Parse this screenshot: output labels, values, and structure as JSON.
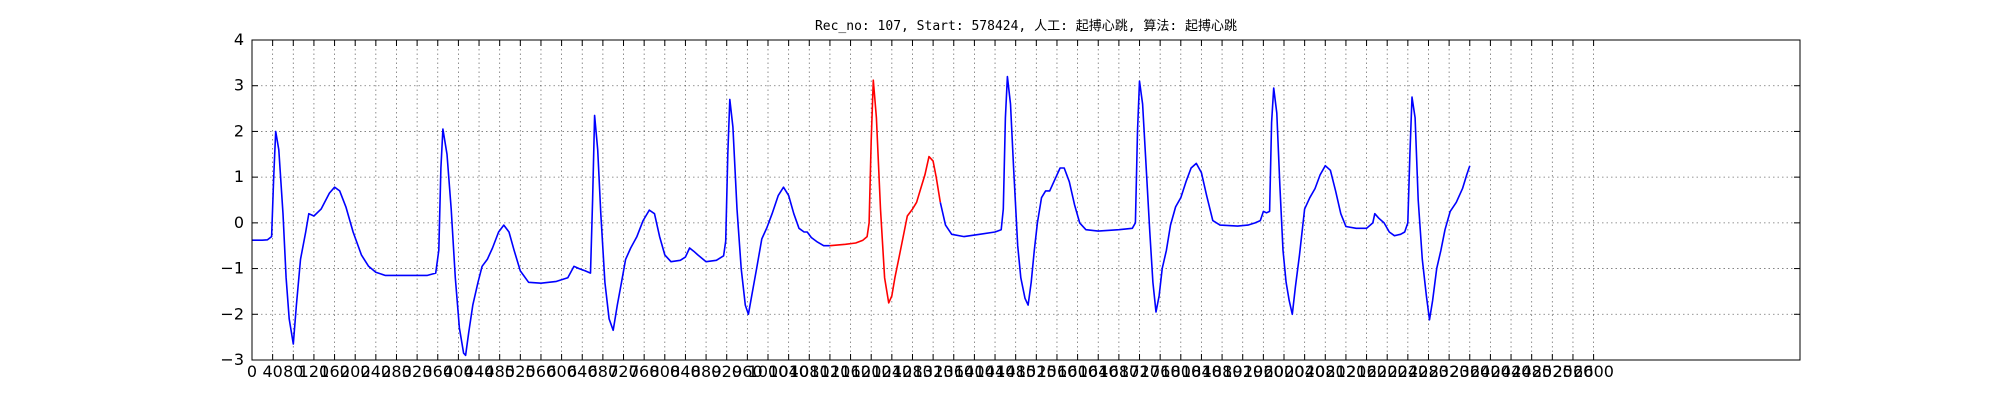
{
  "chart_data": {
    "type": "line",
    "title": "Rec_no: 107, Start: 578424, 人工: 起搏心跳, 算法: 起搏心跳",
    "xlabel": "",
    "ylabel": "",
    "xlim": [
      0,
      3000
    ],
    "ylim": [
      -3,
      4
    ],
    "x_ticks": [
      0,
      40,
      80,
      120,
      160,
      200,
      240,
      280,
      320,
      360,
      400,
      440,
      480,
      520,
      560,
      600,
      640,
      680,
      720,
      760,
      800,
      840,
      880,
      920,
      960,
      1000,
      1040,
      1080,
      1120,
      1160,
      1200,
      1240,
      1280,
      1320,
      1360,
      1400,
      1440,
      1480,
      1520,
      1560,
      1600,
      1640,
      1680,
      1720,
      1760,
      1800,
      1840,
      1880,
      1920,
      1960,
      2000,
      2040,
      2080,
      2120,
      2160,
      2200,
      2240,
      2280,
      2320,
      2360,
      2400,
      2440,
      2480,
      2520,
      2560,
      2600
    ],
    "x_tick_labels": [
      "0",
      "40",
      "80",
      "120",
      "160",
      "200",
      "240",
      "280",
      "320",
      "360",
      "400",
      "440",
      "480",
      "520",
      "560",
      "600",
      "640",
      "680",
      "720",
      "760",
      "800",
      "840",
      "880",
      "920",
      "960",
      "1000",
      "1040",
      "1080",
      "1120",
      "1160",
      "1200",
      "1240",
      "1280",
      "1320",
      "1360",
      "1400",
      "1440",
      "1480",
      "1520",
      "1560",
      "1600",
      "1640",
      "1680",
      "1720",
      "1760",
      "1800",
      "1840",
      "1880",
      "1920",
      "1960",
      "2000",
      "2040",
      "2080",
      "2120",
      "2160",
      "2200",
      "2240",
      "2280",
      "2320",
      "2360",
      "2400",
      "2440",
      "2480",
      "2520",
      "2560",
      "2600"
    ],
    "y_ticks": [
      -3,
      -2,
      -1,
      0,
      1,
      2,
      3,
      4
    ],
    "y_tick_labels": [
      "−3",
      "−2",
      "−1",
      "0",
      "1",
      "2",
      "3",
      "4"
    ],
    "grid": true,
    "series": [
      {
        "color": "#0000ff",
        "points": [
          [
            0,
            -0.38
          ],
          [
            20,
            -0.38
          ],
          [
            30,
            -0.37
          ],
          [
            38,
            -0.3
          ],
          [
            42,
            1.0
          ],
          [
            46,
            2.0
          ],
          [
            52,
            1.6
          ],
          [
            60,
            0.2
          ],
          [
            66,
            -1.2
          ],
          [
            72,
            -2.1
          ],
          [
            80,
            -2.65
          ],
          [
            86,
            -1.8
          ],
          [
            94,
            -0.8
          ],
          [
            104,
            -0.2
          ],
          [
            110,
            0.2
          ],
          [
            120,
            0.15
          ],
          [
            134,
            0.3
          ],
          [
            150,
            0.65
          ],
          [
            160,
            0.78
          ],
          [
            170,
            0.7
          ],
          [
            182,
            0.35
          ],
          [
            196,
            -0.2
          ],
          [
            212,
            -0.7
          ],
          [
            226,
            -0.95
          ],
          [
            240,
            -1.08
          ],
          [
            258,
            -1.15
          ],
          [
            300,
            -1.15
          ],
          [
            340,
            -1.15
          ],
          [
            356,
            -1.1
          ],
          [
            362,
            -0.6
          ],
          [
            366,
            1.2
          ],
          [
            370,
            2.05
          ],
          [
            378,
            1.5
          ],
          [
            386,
            0.3
          ],
          [
            394,
            -1.2
          ],
          [
            402,
            -2.3
          ],
          [
            410,
            -2.85
          ],
          [
            414,
            -2.9
          ],
          [
            420,
            -2.4
          ],
          [
            428,
            -1.8
          ],
          [
            438,
            -1.3
          ],
          [
            446,
            -0.95
          ],
          [
            456,
            -0.8
          ],
          [
            466,
            -0.55
          ],
          [
            478,
            -0.2
          ],
          [
            488,
            -0.05
          ],
          [
            498,
            -0.2
          ],
          [
            508,
            -0.6
          ],
          [
            520,
            -1.05
          ],
          [
            536,
            -1.3
          ],
          [
            560,
            -1.32
          ],
          [
            590,
            -1.28
          ],
          [
            612,
            -1.2
          ],
          [
            624,
            -0.95
          ],
          [
            634,
            -1.0
          ],
          [
            646,
            -1.05
          ],
          [
            656,
            -1.1
          ],
          [
            660,
            0.5
          ],
          [
            664,
            2.35
          ],
          [
            670,
            1.6
          ],
          [
            676,
            0.2
          ],
          [
            684,
            -1.3
          ],
          [
            692,
            -2.1
          ],
          [
            700,
            -2.35
          ],
          [
            708,
            -1.8
          ],
          [
            716,
            -1.3
          ],
          [
            724,
            -0.8
          ],
          [
            734,
            -0.55
          ],
          [
            746,
            -0.3
          ],
          [
            758,
            0.05
          ],
          [
            770,
            0.28
          ],
          [
            780,
            0.2
          ],
          [
            790,
            -0.3
          ],
          [
            800,
            -0.7
          ],
          [
            812,
            -0.85
          ],
          [
            830,
            -0.82
          ],
          [
            840,
            -0.75
          ],
          [
            848,
            -0.55
          ],
          [
            856,
            -0.62
          ],
          [
            864,
            -0.7
          ],
          [
            880,
            -0.85
          ],
          [
            900,
            -0.82
          ],
          [
            914,
            -0.72
          ],
          [
            918,
            -0.4
          ],
          [
            922,
            1.5
          ],
          [
            926,
            2.7
          ],
          [
            932,
            2.1
          ],
          [
            940,
            0.3
          ],
          [
            948,
            -1.0
          ],
          [
            956,
            -1.8
          ],
          [
            962,
            -2.0
          ],
          [
            970,
            -1.5
          ],
          [
            978,
            -1.0
          ],
          [
            988,
            -0.35
          ],
          [
            998,
            -0.1
          ],
          [
            1008,
            0.2
          ],
          [
            1020,
            0.6
          ],
          [
            1030,
            0.78
          ],
          [
            1040,
            0.6
          ],
          [
            1050,
            0.2
          ],
          [
            1060,
            -0.12
          ],
          [
            1070,
            -0.2
          ],
          [
            1076,
            -0.2
          ],
          [
            1084,
            -0.32
          ],
          [
            1096,
            -0.42
          ],
          [
            1108,
            -0.5
          ],
          [
            1120,
            -0.5
          ]
        ]
      },
      {
        "color": "#ff0000",
        "points": [
          [
            1120,
            -0.5
          ],
          [
            1150,
            -0.47
          ],
          [
            1170,
            -0.44
          ],
          [
            1184,
            -0.38
          ],
          [
            1192,
            -0.3
          ],
          [
            1196,
            0.0
          ],
          [
            1200,
            1.8
          ],
          [
            1204,
            3.12
          ],
          [
            1210,
            2.3
          ],
          [
            1218,
            0.3
          ],
          [
            1226,
            -1.2
          ],
          [
            1234,
            -1.75
          ],
          [
            1240,
            -1.6
          ],
          [
            1246,
            -1.2
          ],
          [
            1254,
            -0.75
          ],
          [
            1262,
            -0.3
          ],
          [
            1270,
            0.15
          ],
          [
            1280,
            0.3
          ],
          [
            1288,
            0.45
          ],
          [
            1296,
            0.75
          ],
          [
            1304,
            1.05
          ],
          [
            1312,
            1.45
          ],
          [
            1320,
            1.35
          ],
          [
            1326,
            1.0
          ],
          [
            1334,
            0.45
          ]
        ]
      },
      {
        "color": "#0000ff",
        "points": [
          [
            1334,
            0.45
          ],
          [
            1344,
            -0.05
          ],
          [
            1356,
            -0.25
          ],
          [
            1380,
            -0.3
          ],
          [
            1410,
            -0.25
          ],
          [
            1440,
            -0.2
          ],
          [
            1452,
            -0.15
          ],
          [
            1456,
            0.3
          ],
          [
            1460,
            2.3
          ],
          [
            1464,
            3.2
          ],
          [
            1470,
            2.6
          ],
          [
            1476,
            1.2
          ],
          [
            1484,
            -0.5
          ],
          [
            1490,
            -1.2
          ],
          [
            1498,
            -1.65
          ],
          [
            1504,
            -1.8
          ],
          [
            1510,
            -1.3
          ],
          [
            1516,
            -0.6
          ],
          [
            1522,
            0.0
          ],
          [
            1530,
            0.55
          ],
          [
            1538,
            0.7
          ],
          [
            1546,
            0.7
          ],
          [
            1556,
            0.95
          ],
          [
            1566,
            1.2
          ],
          [
            1574,
            1.2
          ],
          [
            1584,
            0.9
          ],
          [
            1594,
            0.4
          ],
          [
            1604,
            0.0
          ],
          [
            1616,
            -0.15
          ],
          [
            1640,
            -0.18
          ],
          [
            1680,
            -0.15
          ],
          [
            1706,
            -0.12
          ],
          [
            1712,
            0.0
          ],
          [
            1716,
            2.0
          ],
          [
            1720,
            3.1
          ],
          [
            1726,
            2.6
          ],
          [
            1732,
            1.4
          ],
          [
            1740,
            -0.2
          ],
          [
            1746,
            -1.3
          ],
          [
            1752,
            -1.95
          ],
          [
            1758,
            -1.6
          ],
          [
            1764,
            -1.0
          ],
          [
            1772,
            -0.6
          ],
          [
            1780,
            -0.05
          ],
          [
            1790,
            0.35
          ],
          [
            1800,
            0.55
          ],
          [
            1810,
            0.9
          ],
          [
            1820,
            1.2
          ],
          [
            1830,
            1.3
          ],
          [
            1840,
            1.1
          ],
          [
            1850,
            0.6
          ],
          [
            1862,
            0.05
          ],
          [
            1876,
            -0.05
          ],
          [
            1910,
            -0.07
          ],
          [
            1930,
            -0.05
          ],
          [
            1944,
            0.0
          ],
          [
            1954,
            0.05
          ],
          [
            1960,
            0.25
          ],
          [
            1966,
            0.22
          ],
          [
            1972,
            0.25
          ],
          [
            1976,
            2.2
          ],
          [
            1980,
            2.95
          ],
          [
            1986,
            2.4
          ],
          [
            1992,
            0.8
          ],
          [
            1998,
            -0.6
          ],
          [
            2004,
            -1.3
          ],
          [
            2010,
            -1.7
          ],
          [
            2016,
            -2.0
          ],
          [
            2022,
            -1.4
          ],
          [
            2030,
            -0.7
          ],
          [
            2040,
            0.3
          ],
          [
            2050,
            0.55
          ],
          [
            2060,
            0.75
          ],
          [
            2070,
            1.05
          ],
          [
            2080,
            1.25
          ],
          [
            2090,
            1.15
          ],
          [
            2100,
            0.7
          ],
          [
            2110,
            0.2
          ],
          [
            2120,
            -0.08
          ],
          [
            2140,
            -0.12
          ],
          [
            2160,
            -0.12
          ],
          [
            2172,
            0.0
          ],
          [
            2176,
            0.2
          ],
          [
            2184,
            0.1
          ],
          [
            2194,
            0.0
          ],
          [
            2204,
            -0.2
          ],
          [
            2214,
            -0.28
          ],
          [
            2226,
            -0.25
          ],
          [
            2234,
            -0.2
          ],
          [
            2240,
            0.0
          ],
          [
            2244,
            1.5
          ],
          [
            2248,
            2.75
          ],
          [
            2254,
            2.3
          ],
          [
            2260,
            0.5
          ],
          [
            2268,
            -0.8
          ],
          [
            2276,
            -1.6
          ],
          [
            2282,
            -2.12
          ],
          [
            2288,
            -1.7
          ],
          [
            2296,
            -1.0
          ],
          [
            2304,
            -0.6
          ],
          [
            2312,
            -0.15
          ],
          [
            2322,
            0.25
          ],
          [
            2334,
            0.45
          ],
          [
            2346,
            0.75
          ],
          [
            2354,
            1.05
          ],
          [
            2360,
            1.25
          ]
        ]
      }
    ]
  }
}
